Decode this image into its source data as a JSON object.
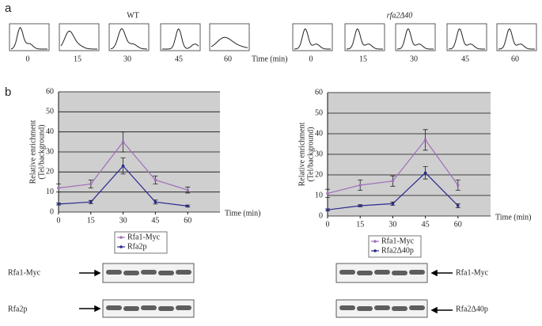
{
  "panel_a": {
    "label": "a",
    "time_label": "Time (min)",
    "groups": [
      {
        "title": "WT",
        "times": [
          "0",
          "15",
          "30",
          "45",
          "60"
        ]
      },
      {
        "title": "rfa2Δ40",
        "times": [
          "0",
          "15",
          "30",
          "45",
          "60"
        ]
      }
    ]
  },
  "panel_b_label": "b",
  "chart_data": [
    {
      "type": "line",
      "y_label": [
        "Relative enrichment",
        "(Tel/background)"
      ],
      "x_label": "Time (min)",
      "x": [
        0,
        15,
        30,
        45,
        60
      ],
      "xlim": [
        0,
        75
      ],
      "xticks": [
        0,
        15,
        30,
        45,
        60
      ],
      "ylim": [
        0,
        60
      ],
      "yticks": [
        0,
        10,
        20,
        30,
        40,
        50,
        60
      ],
      "grid": true,
      "series": [
        {
          "name": "Rfa1-Myc",
          "color": "#a070b8",
          "values": [
            12,
            14,
            35,
            16,
            11
          ],
          "errors": [
            2,
            2,
            5,
            2,
            1.5
          ]
        },
        {
          "name": "Rfa2p",
          "color": "#2a2a90",
          "values": [
            4,
            5,
            23,
            5,
            3
          ],
          "errors": [
            0.5,
            0.8,
            4,
            1,
            0.5
          ]
        }
      ]
    },
    {
      "type": "line",
      "y_label": [
        "Relative enrichment",
        "(Tel/background)"
      ],
      "x_label": "Time (min)",
      "x": [
        0,
        15,
        30,
        45,
        60
      ],
      "xlim": [
        0,
        75
      ],
      "xticks": [
        0,
        15,
        30,
        45,
        60
      ],
      "ylim": [
        0,
        60
      ],
      "yticks": [
        0,
        10,
        20,
        30,
        40,
        50,
        60
      ],
      "grid": true,
      "series": [
        {
          "name": "Rfa1-Myc",
          "color": "#a070b8",
          "values": [
            11,
            15,
            17,
            37,
            15
          ],
          "errors": [
            2,
            2.5,
            2.5,
            5,
            2.5
          ]
        },
        {
          "name": "Rfa2Δ40p",
          "color": "#2a2a90",
          "values": [
            3,
            5,
            6,
            21,
            5
          ],
          "errors": [
            0.5,
            0.5,
            0.8,
            3,
            1
          ]
        }
      ]
    }
  ],
  "blots": [
    {
      "bands": [
        "Rfa1-Myc",
        "Rfa2p"
      ]
    },
    {
      "bands": [
        "Rfa1-Myc",
        "Rfa2Δ40p"
      ]
    }
  ]
}
